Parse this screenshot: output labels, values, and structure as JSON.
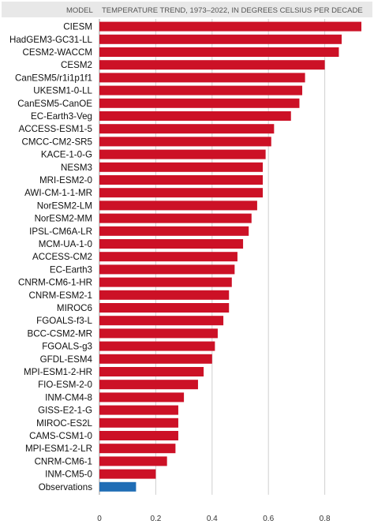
{
  "chart_data": {
    "type": "bar",
    "orientation": "horizontal",
    "header_left": "MODEL",
    "title": "TEMPERATURE TREND, 1973–2022, IN DEGREES CELSIUS PER DECADE",
    "categories": [
      "CIESM",
      "HadGEM3-GC31-LL",
      "CESM2-WACCM",
      "CESM2",
      "CanESM5/r1i1p1f1",
      "UKESM1-0-LL",
      "CanESM5-CanOE",
      "EC-Earth3-Veg",
      "ACCESS-ESM1-5",
      "CMCC-CM2-SR5",
      "KACE-1-0-G",
      "NESM3",
      "MRI-ESM2-0",
      "AWI-CM-1-1-MR",
      "NorESM2-LM",
      "NorESM2-MM",
      "IPSL-CM6A-LR",
      "MCM-UA-1-0",
      "ACCESS-CM2",
      "EC-Earth3",
      "CNRM-CM6-1-HR",
      "CNRM-ESM2-1",
      "MIROC6",
      "FGOALS-f3-L",
      "BCC-CSM2-MR",
      "FGOALS-g3",
      "GFDL-ESM4",
      "MPI-ESM1-2-HR",
      "FIO-ESM-2-0",
      "INM-CM4-8",
      "GISS-E2-1-G",
      "MIROC-ES2L",
      "CAMS-CSM1-0",
      "MPI-ESM1-2-LR",
      "CNRM-CM6-1",
      "INM-CM5-0",
      "Observations"
    ],
    "values": [
      0.93,
      0.86,
      0.85,
      0.8,
      0.73,
      0.72,
      0.71,
      0.68,
      0.62,
      0.61,
      0.59,
      0.58,
      0.58,
      0.58,
      0.56,
      0.54,
      0.53,
      0.51,
      0.49,
      0.48,
      0.47,
      0.46,
      0.46,
      0.44,
      0.42,
      0.41,
      0.4,
      0.37,
      0.35,
      0.3,
      0.28,
      0.28,
      0.28,
      0.27,
      0.24,
      0.2,
      0.13
    ],
    "xticks": [
      "0",
      "0.2",
      "0.4",
      "0.6",
      "0.8"
    ],
    "xlim": [
      0,
      0.95
    ],
    "colors": {
      "model": "#cc1126",
      "observations": "#1f6db5",
      "header_bg": "#e8e8e8",
      "grid": "#cfcfcf"
    },
    "highlight_category": "Observations",
    "grid": true
  }
}
